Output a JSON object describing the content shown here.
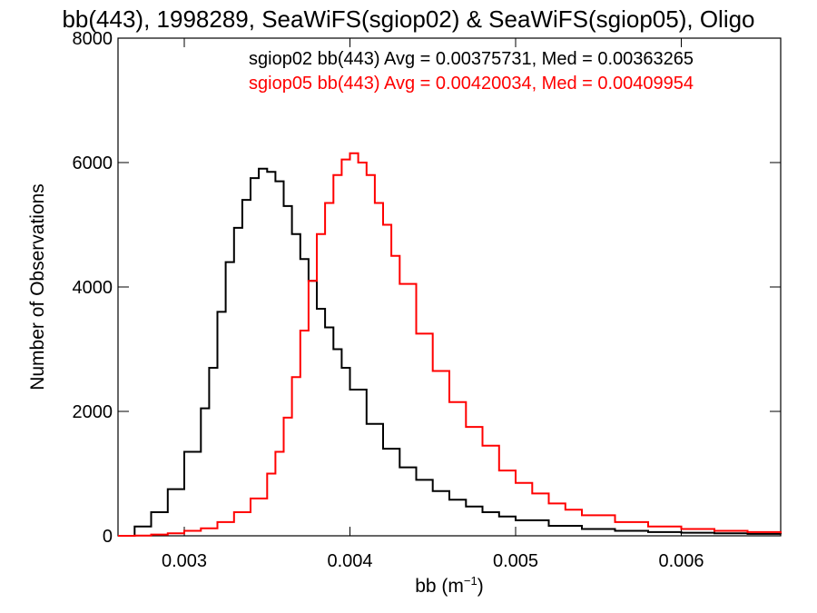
{
  "chart_data": {
    "type": "line",
    "title": "bb(443), 1998289, SeaWiFS(sgiop02) & SeaWiFS(sgiop05), Oligo",
    "xlabel": "bb (m",
    "xlabel_sup": "−1",
    "xlabel_close": ")",
    "ylabel": "Number of Observations",
    "xlim": [
      0.0026,
      0.0066
    ],
    "ylim": [
      0,
      8000
    ],
    "xticks": [
      {
        "value": 0.003,
        "label": "0.003"
      },
      {
        "value": 0.004,
        "label": "0.004"
      },
      {
        "value": 0.005,
        "label": "0.005"
      },
      {
        "value": 0.006,
        "label": "0.006"
      }
    ],
    "yticks": [
      {
        "value": 0,
        "label": "0"
      },
      {
        "value": 2000,
        "label": "2000"
      },
      {
        "value": 4000,
        "label": "4000"
      },
      {
        "value": 6000,
        "label": "6000"
      },
      {
        "value": 8000,
        "label": "8000"
      }
    ],
    "legend_position": "top-right",
    "series": [
      {
        "name": "sgiop02 bb(443) Avg = 0.00375731, Med = 0.00363265",
        "color": "#000000",
        "x": [
          0.0026,
          0.0027,
          0.0028,
          0.0029,
          0.003,
          0.0031,
          0.00315,
          0.0032,
          0.00325,
          0.0033,
          0.00335,
          0.0034,
          0.00345,
          0.0035,
          0.00355,
          0.0036,
          0.00365,
          0.0037,
          0.00375,
          0.0038,
          0.00385,
          0.0039,
          0.00395,
          0.004,
          0.0041,
          0.0042,
          0.0043,
          0.0044,
          0.0045,
          0.0046,
          0.0047,
          0.0048,
          0.0049,
          0.005,
          0.0052,
          0.0054,
          0.0056,
          0.0058,
          0.006,
          0.0062,
          0.0064,
          0.0066
        ],
        "y": [
          0,
          150,
          380,
          750,
          1350,
          2050,
          2700,
          3600,
          4400,
          4950,
          5400,
          5750,
          5900,
          5850,
          5700,
          5300,
          4850,
          4450,
          4100,
          3650,
          3350,
          3000,
          2700,
          2350,
          1800,
          1400,
          1100,
          900,
          720,
          580,
          470,
          380,
          310,
          250,
          160,
          110,
          80,
          60,
          50,
          40,
          30,
          25
        ]
      },
      {
        "name": "sgiop05 bb(443) Avg = 0.00420034, Med = 0.00409954",
        "color": "#ff0000",
        "x": [
          0.0026,
          0.0027,
          0.0028,
          0.0029,
          0.003,
          0.0031,
          0.0032,
          0.0033,
          0.0034,
          0.0035,
          0.00355,
          0.0036,
          0.00365,
          0.0037,
          0.00375,
          0.0038,
          0.00385,
          0.0039,
          0.00395,
          0.004,
          0.00405,
          0.0041,
          0.00415,
          0.0042,
          0.00425,
          0.0043,
          0.0044,
          0.0045,
          0.0046,
          0.0047,
          0.0048,
          0.0049,
          0.005,
          0.0051,
          0.0052,
          0.0053,
          0.0054,
          0.0056,
          0.0058,
          0.006,
          0.0062,
          0.0064,
          0.0066
        ],
        "y": [
          0,
          5,
          20,
          40,
          80,
          120,
          220,
          380,
          600,
          1000,
          1350,
          1900,
          2550,
          3300,
          4100,
          4850,
          5350,
          5800,
          6050,
          6150,
          6000,
          5800,
          5350,
          5000,
          4500,
          4050,
          3250,
          2650,
          2150,
          1750,
          1450,
          1050,
          850,
          680,
          520,
          420,
          330,
          220,
          150,
          110,
          80,
          60,
          40
        ]
      }
    ]
  }
}
